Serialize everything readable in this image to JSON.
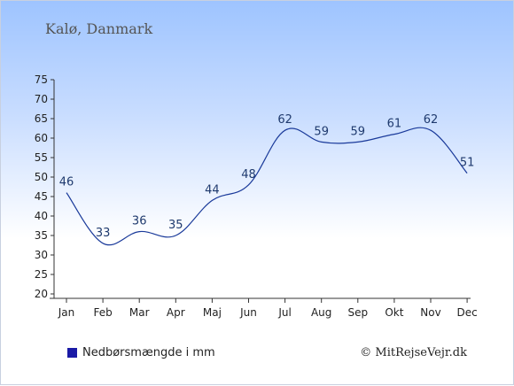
{
  "title": "Kalø, Danmark",
  "legend_label": "Nedbørsmængde i mm",
  "copyright": "© MitRejseVejr.dk",
  "colors": {
    "line": "#1a3a9a",
    "label": "#1f3a6e",
    "legend_swatch": "#1a1aa6"
  },
  "chart_data": {
    "type": "line",
    "categories": [
      "Jan",
      "Feb",
      "Mar",
      "Apr",
      "Maj",
      "Jun",
      "Jul",
      "Aug",
      "Sep",
      "Okt",
      "Nov",
      "Dec"
    ],
    "series": [
      {
        "name": "Nedbørsmængde i mm",
        "values": [
          46,
          33,
          36,
          35,
          44,
          48,
          62,
          59,
          59,
          61,
          62,
          51
        ]
      }
    ],
    "yticks": [
      20,
      25,
      30,
      35,
      40,
      45,
      50,
      55,
      60,
      65,
      70,
      75
    ],
    "ylim": [
      20,
      75
    ],
    "grid": false,
    "legend": "bottom-left"
  }
}
